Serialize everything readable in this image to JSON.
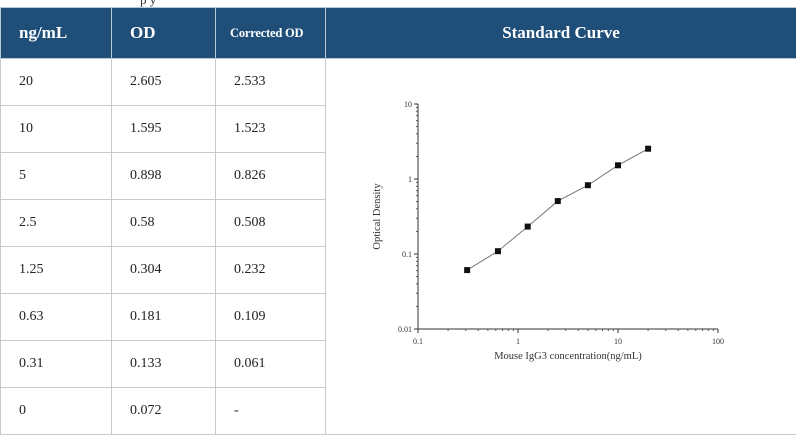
{
  "caption_fragment": "p                                                                    y",
  "table": {
    "headers": [
      "ng/mL",
      "OD",
      "Corrected OD",
      "Standard Curve"
    ],
    "rows": [
      [
        "20",
        "2.605",
        "2.533"
      ],
      [
        "10",
        "1.595",
        "1.523"
      ],
      [
        "5",
        "0.898",
        "0.826"
      ],
      [
        "2.5",
        "0.58",
        "0.508"
      ],
      [
        "1.25",
        "0.304",
        "0.232"
      ],
      [
        "0.63",
        "0.181",
        "0.109"
      ],
      [
        "0.31",
        "0.133",
        "0.061"
      ],
      [
        "0",
        "0.072",
        "-"
      ]
    ]
  },
  "colors": {
    "header_bg": "#1f4e79",
    "header_text": "#ffffff",
    "grid": "#c9c9c9"
  },
  "chart_data": {
    "type": "scatter",
    "xlabel": "Mouse IgG3 concentration(ng/mL)",
    "ylabel": "Optical Density",
    "xscale": "log",
    "yscale": "log",
    "xlim": [
      0.1,
      100
    ],
    "ylim": [
      0.01,
      10
    ],
    "x_ticks": [
      "0.1",
      "1",
      "10",
      "100"
    ],
    "y_ticks": [
      "0.01",
      "0.1",
      "1",
      "10"
    ],
    "grid": false,
    "legend": "none",
    "series": [
      {
        "x": [
          20,
          10,
          5,
          2.5,
          1.25,
          0.63,
          0.31
        ],
        "y": [
          2.533,
          1.523,
          0.826,
          0.508,
          0.232,
          0.109,
          0.061
        ],
        "marker": "square",
        "fit_line": true
      }
    ]
  }
}
